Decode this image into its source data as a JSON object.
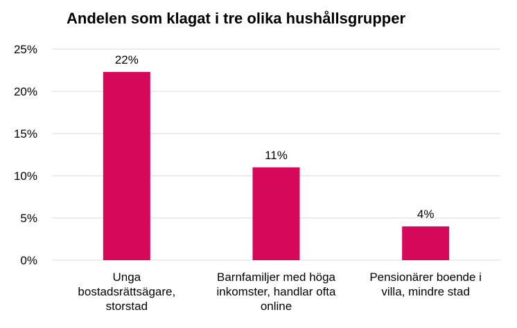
{
  "chart_data": {
    "type": "bar",
    "title": "Andelen som klagat i tre olika hushållsgrupper",
    "categories": [
      "Unga bostadsrättsägare, storstad",
      "Barnfamiljer med höga inkomster, handlar ofta online",
      "Pensionärer boende i villa, mindre stad"
    ],
    "category_lines": [
      [
        "Unga",
        "bostadsrättsägare,",
        "storstad"
      ],
      [
        "Barnfamiljer med höga",
        "inkomster, handlar ofta",
        "online"
      ],
      [
        "Pensionärer boende i",
        "villa, mindre stad"
      ]
    ],
    "values": [
      22.3,
      11.0,
      4.0
    ],
    "data_labels": [
      "22%",
      "11%",
      "4%"
    ],
    "yticks": [
      "0%",
      "5%",
      "10%",
      "15%",
      "20%",
      "25%"
    ],
    "ylim": [
      0,
      25
    ],
    "grid": true,
    "bar_color": "#d6085a"
  }
}
